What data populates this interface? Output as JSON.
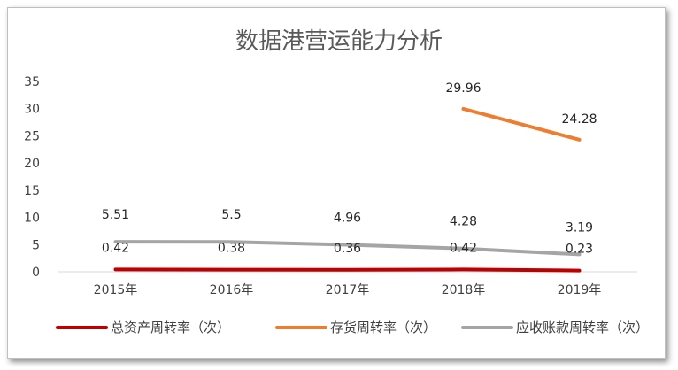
{
  "chart_data": {
    "type": "line",
    "title": "数据港营运能力分析",
    "categories": [
      "2015年",
      "2016年",
      "2017年",
      "2018年",
      "2019年"
    ],
    "ylim": [
      0,
      35
    ],
    "yticks": [
      0,
      5,
      10,
      15,
      20,
      25,
      30,
      35
    ],
    "grid": false,
    "legend_position": "bottom",
    "series": [
      {
        "name": "总资产周转率（次）",
        "color": "#c00000",
        "values": [
          0.42,
          0.38,
          0.36,
          0.42,
          0.23
        ]
      },
      {
        "name": "存货周转率（次）",
        "color": "#ed7d31",
        "values": [
          null,
          null,
          null,
          29.96,
          24.28
        ]
      },
      {
        "name": "应收账款周转率（次）",
        "color": "#a5a5a5",
        "values": [
          5.51,
          5.5,
          4.96,
          4.28,
          3.19
        ]
      }
    ]
  }
}
